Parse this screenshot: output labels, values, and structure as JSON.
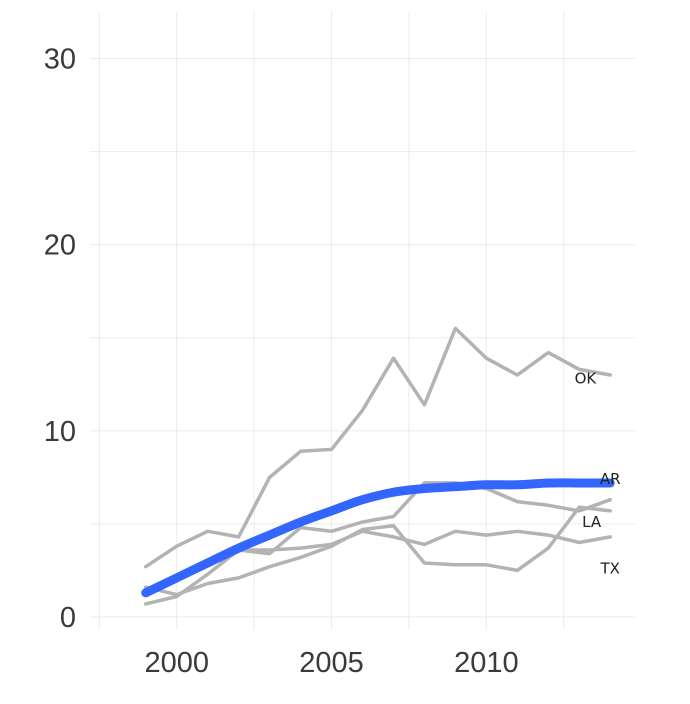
{
  "chart_data": {
    "type": "line",
    "title": "",
    "xlabel": "",
    "ylabel": "",
    "xlim": [
      1997.2,
      2014.8
    ],
    "ylim": [
      -0.7,
      32.5
    ],
    "x_ticks": [
      2000,
      2005,
      2010
    ],
    "y_ticks": [
      0,
      10,
      20,
      30
    ],
    "grid": true,
    "legend": "none",
    "colors": {
      "background_series": "#b3b3b3",
      "highlight": "#3366ff",
      "grid": "#ebebeb"
    },
    "x": [
      1999,
      2000,
      2001,
      2002,
      2003,
      2004,
      2005,
      2006,
      2007,
      2008,
      2009,
      2010,
      2011,
      2012,
      2013,
      2014
    ],
    "series": [
      {
        "name": "OK",
        "values": [
          2.7,
          3.8,
          4.6,
          4.3,
          7.5,
          8.9,
          9.0,
          11.1,
          13.9,
          11.4,
          15.5,
          13.9,
          13.0,
          14.2,
          13.3,
          13.0
        ]
      },
      {
        "name": "AR",
        "values": [
          1.4,
          2.0,
          2.9,
          3.6,
          3.4,
          4.8,
          4.6,
          5.1,
          5.4,
          7.2,
          7.2,
          6.9,
          6.2,
          6.0,
          5.7,
          6.3
        ]
      },
      {
        "name": "LA",
        "values": [
          1.6,
          1.2,
          1.8,
          2.1,
          2.7,
          3.2,
          3.8,
          4.7,
          4.9,
          2.9,
          2.8,
          2.8,
          2.5,
          3.7,
          5.9,
          5.7
        ]
      },
      {
        "name": "TX",
        "values": [
          0.7,
          1.1,
          2.3,
          3.6,
          3.6,
          3.7,
          3.9,
          4.6,
          4.3,
          3.9,
          4.6,
          4.4,
          4.6,
          4.4,
          4.0,
          4.3
        ]
      }
    ],
    "trend": {
      "x": [
        1999,
        2000,
        2001,
        2002,
        2003,
        2004,
        2005,
        2006,
        2007,
        2008,
        2009,
        2010,
        2011,
        2012,
        2013,
        2014
      ],
      "values": [
        1.3,
        2.1,
        2.9,
        3.7,
        4.4,
        5.1,
        5.7,
        6.3,
        6.7,
        6.9,
        7.0,
        7.1,
        7.1,
        7.2,
        7.2,
        7.2
      ]
    },
    "labels": [
      {
        "text": "OK",
        "x": 2013.2,
        "y": 12.8
      },
      {
        "text": "AR",
        "x": 2014.0,
        "y": 7.4
      },
      {
        "text": "LA",
        "x": 2013.4,
        "y": 5.1
      },
      {
        "text": "TX",
        "x": 2014.0,
        "y": 2.6
      }
    ]
  }
}
